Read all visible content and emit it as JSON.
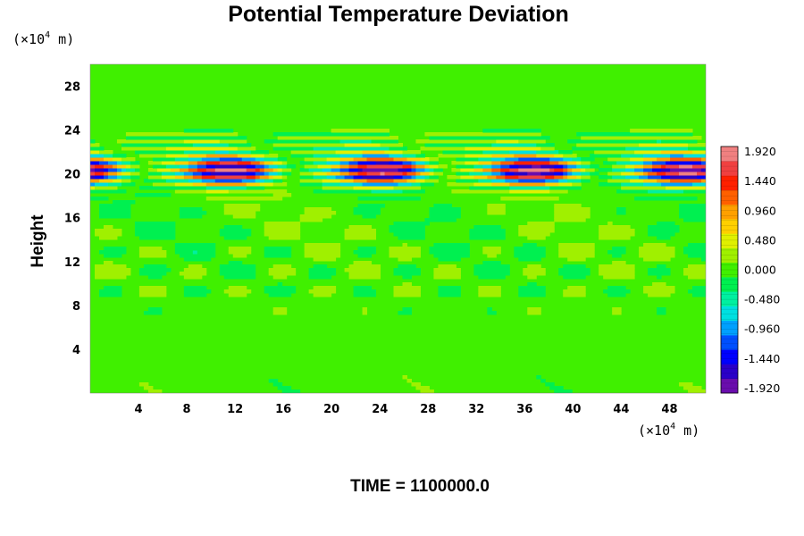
{
  "chart_data": {
    "type": "heatmap",
    "title": "Potential Temperature Deviation",
    "ylabel": "Height",
    "xlabel": "",
    "y_unit": {
      "prefix": "(×10",
      "exp": "4",
      "suffix": " m)"
    },
    "x_unit": {
      "prefix": "(×10",
      "exp": "4",
      "suffix": " m)"
    },
    "xlim": [
      0,
      51
    ],
    "ylim": [
      0,
      30
    ],
    "x_ticks": [
      4,
      8,
      12,
      16,
      20,
      24,
      28,
      32,
      36,
      40,
      44,
      48
    ],
    "y_ticks": [
      4,
      8,
      12,
      16,
      20,
      24,
      28
    ],
    "colorbar": {
      "range": [
        -2.0,
        2.0
      ],
      "ticks": [
        "1.920",
        "1.440",
        "0.960",
        "0.480",
        "0.000",
        "-0.480",
        "-0.960",
        "-1.440",
        "-1.920"
      ],
      "colors": [
        "#6a0dad",
        "#2a00c8",
        "#0000ff",
        "#0050ff",
        "#00a0ff",
        "#00e0e0",
        "#00f0a0",
        "#00f050",
        "#40f000",
        "#a0f000",
        "#e0f000",
        "#ffd000",
        "#ffa000",
        "#ff6000",
        "#ff2000",
        "#f04040",
        "#f08080"
      ]
    },
    "background_value": 0.0,
    "features": [
      {
        "y_center": 20.3,
        "y_half_width": 1.4,
        "amplitude": 2.0,
        "description": "strong oscillating band"
      },
      {
        "y_center": 22.5,
        "y_half_width": 1.5,
        "amplitude": 0.6
      }
    ],
    "footer": "TIME = 1100000.0"
  }
}
